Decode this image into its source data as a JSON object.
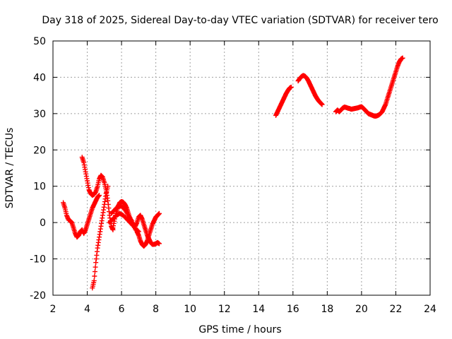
{
  "chart_data": {
    "type": "scatter",
    "title": "Day 318 of 2025, Sidereal Day-to-day VTEC variation (SDTVAR) for receiver tero",
    "xlabel": "GPS time / hours",
    "ylabel": "SDTVAR / TECUs",
    "xlim": [
      2,
      24
    ],
    "ylim": [
      -20,
      50
    ],
    "xticks": [
      2,
      4,
      6,
      8,
      10,
      12,
      14,
      16,
      18,
      20,
      22,
      24
    ],
    "yticks": [
      -20,
      -10,
      0,
      10,
      20,
      30,
      40,
      50
    ],
    "xtick_labels": [
      "2",
      "4",
      "6",
      "8",
      "10",
      "12",
      "14",
      "16",
      "18",
      "20",
      "22",
      "24"
    ],
    "ytick_labels": [
      "-20",
      "-10",
      "0",
      "10",
      "20",
      "30",
      "40",
      "50"
    ],
    "grid": true,
    "marker": "plus",
    "color": "#ff0000",
    "series": [
      {
        "name": "segment-1",
        "points": [
          [
            2.6,
            5.5
          ],
          [
            2.7,
            4.0
          ],
          [
            2.8,
            2.0
          ],
          [
            2.9,
            0.8
          ],
          [
            3.0,
            0.5
          ],
          [
            3.1,
            0.0
          ],
          [
            3.2,
            -1.5
          ],
          [
            3.3,
            -3.0
          ],
          [
            3.4,
            -4.0
          ],
          [
            3.5,
            -3.5
          ],
          [
            3.6,
            -2.5
          ],
          [
            3.7,
            -2.0
          ],
          [
            3.8,
            -3.0
          ],
          [
            3.9,
            -2.0
          ],
          [
            4.0,
            -0.5
          ],
          [
            4.1,
            1.0
          ],
          [
            4.2,
            2.5
          ],
          [
            4.3,
            4.0
          ],
          [
            4.4,
            5.0
          ],
          [
            4.5,
            6.0
          ],
          [
            4.6,
            7.0
          ],
          [
            4.7,
            7.5
          ]
        ]
      },
      {
        "name": "segment-2",
        "points": [
          [
            3.7,
            18.0
          ],
          [
            3.8,
            16.5
          ],
          [
            3.9,
            14.0
          ],
          [
            4.0,
            11.5
          ],
          [
            4.1,
            9.0
          ],
          [
            4.2,
            8.0
          ],
          [
            4.3,
            7.5
          ],
          [
            4.4,
            7.8
          ],
          [
            4.5,
            8.5
          ],
          [
            4.6,
            10.0
          ],
          [
            4.7,
            12.0
          ],
          [
            4.8,
            13.0
          ],
          [
            4.9,
            12.5
          ],
          [
            5.0,
            11.0
          ],
          [
            5.1,
            9.0
          ],
          [
            5.2,
            6.0
          ],
          [
            5.3,
            2.0
          ],
          [
            5.4,
            -1.0
          ],
          [
            5.5,
            -2.0
          ]
        ]
      },
      {
        "name": "segment-3",
        "points": [
          [
            4.3,
            -18.0
          ],
          [
            4.4,
            -16.0
          ],
          [
            4.5,
            -11.0
          ],
          [
            4.6,
            -7.0
          ],
          [
            4.7,
            -4.0
          ],
          [
            4.8,
            -1.0
          ],
          [
            4.9,
            2.0
          ],
          [
            5.0,
            5.0
          ],
          [
            5.1,
            8.0
          ],
          [
            5.2,
            10.0
          ]
        ]
      },
      {
        "name": "segment-4",
        "points": [
          [
            5.5,
            -1.5
          ],
          [
            5.6,
            1.0
          ],
          [
            5.7,
            3.0
          ],
          [
            5.8,
            4.5
          ],
          [
            5.9,
            5.5
          ],
          [
            6.0,
            5.8
          ],
          [
            6.1,
            5.6
          ],
          [
            6.2,
            5.0
          ],
          [
            6.3,
            4.0
          ],
          [
            6.4,
            2.5
          ],
          [
            6.5,
            1.0
          ],
          [
            6.6,
            0.0
          ],
          [
            6.7,
            -0.5
          ],
          [
            6.8,
            -1.0
          ],
          [
            6.9,
            0.0
          ],
          [
            7.0,
            1.5
          ],
          [
            7.1,
            2.0
          ],
          [
            7.2,
            1.0
          ],
          [
            7.3,
            -0.5
          ],
          [
            7.4,
            -2.0
          ],
          [
            7.5,
            -3.5
          ],
          [
            7.6,
            -4.5
          ],
          [
            7.7,
            -5.5
          ],
          [
            7.8,
            -6.0
          ],
          [
            7.9,
            -6.0
          ],
          [
            8.0,
            -5.8
          ],
          [
            8.1,
            -5.5
          ],
          [
            8.2,
            -5.8
          ]
        ]
      },
      {
        "name": "segment-5",
        "points": [
          [
            5.3,
            0.0
          ],
          [
            5.5,
            1.0
          ],
          [
            5.7,
            2.0
          ],
          [
            5.9,
            2.5
          ],
          [
            6.1,
            2.0
          ],
          [
            6.3,
            1.0
          ],
          [
            6.5,
            0.0
          ],
          [
            6.7,
            -1.0
          ],
          [
            6.9,
            -2.5
          ],
          [
            7.0,
            -3.5
          ],
          [
            7.1,
            -5.0
          ],
          [
            7.2,
            -6.0
          ],
          [
            7.3,
            -6.5
          ],
          [
            7.4,
            -6.0
          ],
          [
            7.5,
            -5.0
          ],
          [
            7.6,
            -3.5
          ],
          [
            7.7,
            -2.0
          ],
          [
            7.8,
            -0.5
          ],
          [
            7.9,
            0.5
          ],
          [
            8.0,
            1.5
          ],
          [
            8.1,
            2.0
          ],
          [
            8.2,
            2.5
          ]
        ]
      },
      {
        "name": "segment-6",
        "points": [
          [
            5.4,
            2.5
          ],
          [
            5.6,
            3.5
          ],
          [
            5.8,
            4.5
          ],
          [
            6.0,
            4.5
          ],
          [
            6.2,
            3.5
          ],
          [
            6.4,
            2.0
          ],
          [
            6.6,
            0.5
          ],
          [
            6.8,
            -1.5
          ],
          [
            7.0,
            -2.5
          ]
        ]
      },
      {
        "name": "segment-7",
        "points": [
          [
            15.0,
            29.5
          ],
          [
            15.1,
            30.5
          ],
          [
            15.2,
            31.5
          ],
          [
            15.3,
            32.5
          ],
          [
            15.4,
            33.5
          ],
          [
            15.5,
            34.5
          ],
          [
            15.6,
            35.5
          ],
          [
            15.7,
            36.3
          ],
          [
            15.8,
            37.0
          ],
          [
            15.9,
            37.3
          ]
        ]
      },
      {
        "name": "segment-8",
        "points": [
          [
            16.3,
            39.0
          ],
          [
            16.4,
            39.7
          ],
          [
            16.5,
            40.2
          ],
          [
            16.6,
            40.5
          ],
          [
            16.7,
            40.3
          ],
          [
            16.8,
            39.8
          ],
          [
            16.9,
            39.0
          ],
          [
            17.0,
            38.0
          ],
          [
            17.1,
            37.0
          ],
          [
            17.2,
            36.0
          ],
          [
            17.3,
            35.0
          ],
          [
            17.4,
            34.2
          ],
          [
            17.5,
            33.5
          ],
          [
            17.6,
            33.0
          ],
          [
            17.7,
            32.5
          ]
        ]
      },
      {
        "name": "segment-9",
        "points": [
          [
            18.5,
            30.5
          ],
          [
            18.6,
            31.0
          ],
          [
            18.7,
            30.5
          ],
          [
            18.8,
            31.0
          ],
          [
            18.9,
            31.5
          ],
          [
            19.0,
            31.8
          ],
          [
            19.1,
            31.7
          ],
          [
            19.2,
            31.5
          ],
          [
            19.3,
            31.4
          ],
          [
            19.4,
            31.2
          ],
          [
            19.5,
            31.3
          ],
          [
            19.6,
            31.4
          ],
          [
            19.7,
            31.5
          ],
          [
            19.8,
            31.6
          ],
          [
            19.9,
            31.8
          ],
          [
            20.0,
            31.9
          ],
          [
            20.1,
            31.5
          ],
          [
            20.2,
            31.0
          ],
          [
            20.3,
            30.5
          ],
          [
            20.4,
            30.0
          ],
          [
            20.5,
            29.8
          ],
          [
            20.6,
            29.6
          ],
          [
            20.7,
            29.4
          ],
          [
            20.8,
            29.3
          ],
          [
            20.9,
            29.4
          ],
          [
            21.0,
            29.6
          ],
          [
            21.1,
            30.0
          ],
          [
            21.2,
            30.5
          ],
          [
            21.3,
            31.5
          ],
          [
            21.4,
            32.5
          ],
          [
            21.5,
            34.0
          ],
          [
            21.6,
            35.5
          ],
          [
            21.7,
            37.0
          ],
          [
            21.8,
            38.5
          ],
          [
            21.9,
            40.0
          ],
          [
            22.0,
            41.5
          ],
          [
            22.1,
            43.0
          ],
          [
            22.2,
            44.2
          ],
          [
            22.3,
            45.0
          ],
          [
            22.4,
            45.3
          ]
        ]
      }
    ]
  }
}
